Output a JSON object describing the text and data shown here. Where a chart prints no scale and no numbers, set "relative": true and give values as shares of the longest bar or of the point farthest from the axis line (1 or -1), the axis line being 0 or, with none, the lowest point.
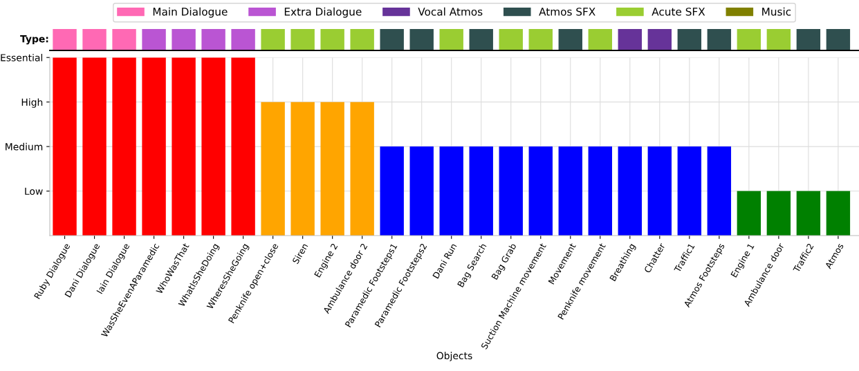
{
  "chart_data": [
    {
      "type": "bar",
      "ylabel": "Type:",
      "stacked": true,
      "relative": true,
      "legend": "top",
      "categories": [
        null,
        null,
        null,
        null,
        null,
        null,
        null,
        null,
        null,
        null,
        null,
        null,
        null,
        null,
        null,
        null,
        null,
        null,
        null,
        null,
        null,
        null,
        null,
        null,
        null,
        null,
        null
      ],
      "series": [
        {
          "name": "Main Dialogue",
          "color": "#ff69b4",
          "values": [
            1,
            1,
            1,
            null,
            null,
            null,
            null,
            null,
            null,
            null,
            null,
            null,
            null,
            null,
            null,
            null,
            null,
            null,
            null,
            null,
            null,
            null,
            null,
            null,
            null,
            null,
            null
          ]
        },
        {
          "name": "Extra Dialogue",
          "color": "#ba55d3",
          "values": [
            null,
            null,
            null,
            1,
            1,
            1,
            1,
            null,
            null,
            null,
            null,
            null,
            null,
            null,
            null,
            null,
            null,
            null,
            null,
            null,
            null,
            null,
            null,
            null,
            null,
            null,
            null
          ]
        },
        {
          "name": "Vocal Atmos",
          "color": "#663399",
          "values": [
            null,
            null,
            null,
            null,
            null,
            null,
            null,
            null,
            null,
            null,
            null,
            null,
            null,
            null,
            null,
            null,
            null,
            null,
            null,
            1,
            1,
            null,
            null,
            null,
            null,
            null,
            null
          ]
        },
        {
          "name": "Atmos SFX",
          "color": "#2f4f4f",
          "values": [
            null,
            null,
            null,
            null,
            null,
            null,
            null,
            null,
            null,
            null,
            null,
            1,
            1,
            null,
            1,
            null,
            null,
            1,
            null,
            null,
            null,
            1,
            1,
            null,
            null,
            1,
            1
          ]
        },
        {
          "name": "Acute SFX",
          "color": "#9acd32",
          "values": [
            null,
            null,
            null,
            null,
            null,
            null,
            null,
            1,
            1,
            1,
            1,
            null,
            null,
            1,
            null,
            1,
            1,
            null,
            1,
            null,
            null,
            null,
            null,
            1,
            1,
            null,
            null
          ]
        },
        {
          "name": "Music",
          "color": "#808000",
          "values": [
            null,
            null,
            null,
            null,
            null,
            null,
            null,
            null,
            null,
            null,
            null,
            null,
            null,
            null,
            null,
            null,
            null,
            null,
            null,
            null,
            null,
            null,
            null,
            null,
            null,
            null,
            null
          ]
        }
      ]
    },
    {
      "type": "bar",
      "xlabel": "Objects",
      "grid": true,
      "categories": [
        "Ruby Dialogue",
        "Dani Dialogue",
        "Iain Dialogue",
        "WasSheEvenAParamedic",
        "WhoWasThat",
        "WhatIsSheDoing",
        "WheresSheGoing",
        "Penknife open+close",
        "Siren",
        "Engine 2",
        "Ambulance door 2",
        "Paramedic Footsteps1",
        "Paramedic Footsteps2",
        "Dani Run",
        "Bag Search",
        "Bag Grab",
        "Suction Machine movement",
        "Movement",
        "Penknife movement",
        "Breathing",
        "Chatter",
        "Traffic1",
        "Atmos Footsteps",
        "Engine 1",
        "Ambulance door",
        "Traffic2",
        "Atmos"
      ],
      "values": [
        1,
        1,
        1,
        1,
        1,
        1,
        1,
        0.75,
        0.75,
        0.75,
        0.75,
        0.5,
        0.5,
        0.5,
        0.5,
        0.5,
        0.5,
        0.5,
        0.5,
        0.5,
        0.5,
        0.5,
        0.5,
        0.25,
        0.25,
        0.25,
        0.25
      ],
      "relative": true,
      "colors": [
        "#ff0000",
        "#ff0000",
        "#ff0000",
        "#ff0000",
        "#ff0000",
        "#ff0000",
        "#ff0000",
        "#ffa500",
        "#ffa500",
        "#ffa500",
        "#ffa500",
        "#0000ff",
        "#0000ff",
        "#0000ff",
        "#0000ff",
        "#0000ff",
        "#0000ff",
        "#0000ff",
        "#0000ff",
        "#0000ff",
        "#0000ff",
        "#0000ff",
        "#0000ff",
        "#008000",
        "#008000",
        "#008000",
        "#008000"
      ],
      "y_categories": [
        "Essential",
        "High",
        "Medium",
        "Low"
      ]
    }
  ]
}
